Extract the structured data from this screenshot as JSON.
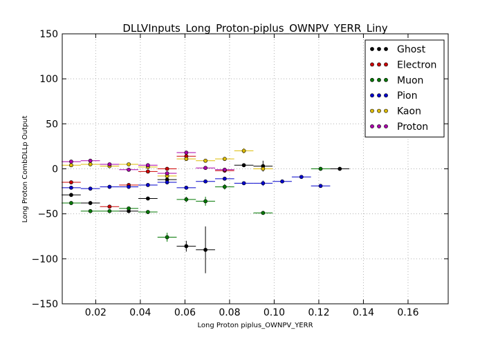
{
  "chart_data": {
    "type": "scatter",
    "title": "DLLVInputs_Long_Proton-piplus_OWNPV_YERR_Liny",
    "xlabel": "Long Proton piplus_OWNPV_YERR",
    "ylabel": "Long Proton CombDLLp Output",
    "xlim": [
      0.005,
      0.178
    ],
    "ylim": [
      -150,
      150
    ],
    "xticks": [
      0.02,
      0.04,
      0.06,
      0.08,
      0.1,
      0.12,
      0.14,
      0.16
    ],
    "xtick_labels": [
      "0.02",
      "0.04",
      "0.06",
      "0.08",
      "0.10",
      "0.12",
      "0.14",
      "0.16"
    ],
    "yticks": [
      -150,
      -100,
      -50,
      0,
      50,
      100,
      150
    ],
    "ytick_labels": [
      "−150",
      "−100",
      "−50",
      "0",
      "50",
      "100",
      "150"
    ],
    "grid": true,
    "legend_position": "top-right",
    "x_bin_halfwidth": 0.0043,
    "series": [
      {
        "name": "Ghost",
        "color": "#000000",
        "points": [
          {
            "x": 0.009,
            "y": -29,
            "yerr": 1
          },
          {
            "x": 0.0176,
            "y": -38,
            "yerr": 1
          },
          {
            "x": 0.0348,
            "y": -47,
            "yerr": 1
          },
          {
            "x": 0.0434,
            "y": -33,
            "yerr": 1
          },
          {
            "x": 0.052,
            "y": -12,
            "yerr": 2
          },
          {
            "x": 0.0606,
            "y": -86,
            "yerr": 6
          },
          {
            "x": 0.0692,
            "y": -90,
            "yerr": 26
          },
          {
            "x": 0.0864,
            "y": 4,
            "yerr": 2
          },
          {
            "x": 0.095,
            "y": 3,
            "yerr": 6
          },
          {
            "x": 0.1294,
            "y": 0,
            "yerr": 1
          }
        ]
      },
      {
        "name": "Electron",
        "color": "#cc0000",
        "points": [
          {
            "x": 0.009,
            "y": -15,
            "yerr": 1
          },
          {
            "x": 0.0262,
            "y": -42,
            "yerr": 1
          },
          {
            "x": 0.0348,
            "y": -18,
            "yerr": 1
          },
          {
            "x": 0.0434,
            "y": -3,
            "yerr": 1
          },
          {
            "x": 0.052,
            "y": 0,
            "yerr": 1
          },
          {
            "x": 0.0606,
            "y": 14,
            "yerr": 2
          },
          {
            "x": 0.0778,
            "y": -2,
            "yerr": 1
          }
        ]
      },
      {
        "name": "Muon",
        "color": "#007700",
        "points": [
          {
            "x": 0.009,
            "y": -38,
            "yerr": 1
          },
          {
            "x": 0.0176,
            "y": -47,
            "yerr": 1
          },
          {
            "x": 0.0262,
            "y": -47,
            "yerr": 1
          },
          {
            "x": 0.0348,
            "y": -44,
            "yerr": 1
          },
          {
            "x": 0.0434,
            "y": -48,
            "yerr": 1
          },
          {
            "x": 0.052,
            "y": -76,
            "yerr": 5
          },
          {
            "x": 0.0606,
            "y": -34,
            "yerr": 3
          },
          {
            "x": 0.0692,
            "y": -36,
            "yerr": 5
          },
          {
            "x": 0.0778,
            "y": -20,
            "yerr": 3
          },
          {
            "x": 0.095,
            "y": -49,
            "yerr": 1
          },
          {
            "x": 0.1208,
            "y": 0,
            "yerr": 1
          }
        ]
      },
      {
        "name": "Pion",
        "color": "#0000cc",
        "points": [
          {
            "x": 0.009,
            "y": -21,
            "yerr": 1
          },
          {
            "x": 0.0176,
            "y": -22,
            "yerr": 1
          },
          {
            "x": 0.0262,
            "y": -20,
            "yerr": 1
          },
          {
            "x": 0.0348,
            "y": -20,
            "yerr": 1
          },
          {
            "x": 0.0434,
            "y": -18,
            "yerr": 1
          },
          {
            "x": 0.052,
            "y": -15,
            "yerr": 1
          },
          {
            "x": 0.0606,
            "y": -21,
            "yerr": 1
          },
          {
            "x": 0.0692,
            "y": -14,
            "yerr": 1
          },
          {
            "x": 0.0778,
            "y": -11,
            "yerr": 1
          },
          {
            "x": 0.0864,
            "y": -16,
            "yerr": 2
          },
          {
            "x": 0.095,
            "y": -16,
            "yerr": 3
          },
          {
            "x": 0.1036,
            "y": -14,
            "yerr": 1
          },
          {
            "x": 0.1122,
            "y": -9,
            "yerr": 1
          },
          {
            "x": 0.1208,
            "y": -19,
            "yerr": 2
          }
        ]
      },
      {
        "name": "Kaon",
        "color": "#ddbb00",
        "points": [
          {
            "x": 0.009,
            "y": 4,
            "yerr": 1
          },
          {
            "x": 0.0176,
            "y": 5,
            "yerr": 1
          },
          {
            "x": 0.0262,
            "y": 3,
            "yerr": 1
          },
          {
            "x": 0.0348,
            "y": 5,
            "yerr": 1
          },
          {
            "x": 0.0434,
            "y": 2,
            "yerr": 1
          },
          {
            "x": 0.052,
            "y": -8,
            "yerr": 2
          },
          {
            "x": 0.0606,
            "y": 11,
            "yerr": 2
          },
          {
            "x": 0.0692,
            "y": 9,
            "yerr": 2
          },
          {
            "x": 0.0778,
            "y": 11,
            "yerr": 2
          },
          {
            "x": 0.0864,
            "y": 20,
            "yerr": 3
          },
          {
            "x": 0.095,
            "y": 0,
            "yerr": 2
          }
        ]
      },
      {
        "name": "Proton",
        "color": "#aa00aa",
        "points": [
          {
            "x": 0.009,
            "y": 8,
            "yerr": 1
          },
          {
            "x": 0.0176,
            "y": 9,
            "yerr": 1
          },
          {
            "x": 0.0262,
            "y": 5,
            "yerr": 1
          },
          {
            "x": 0.0348,
            "y": -1,
            "yerr": 1
          },
          {
            "x": 0.0434,
            "y": 4,
            "yerr": 1
          },
          {
            "x": 0.052,
            "y": -5,
            "yerr": 1
          },
          {
            "x": 0.0606,
            "y": 18,
            "yerr": 2
          },
          {
            "x": 0.0692,
            "y": 1,
            "yerr": 1
          },
          {
            "x": 0.0778,
            "y": -1,
            "yerr": 1
          }
        ]
      }
    ]
  }
}
